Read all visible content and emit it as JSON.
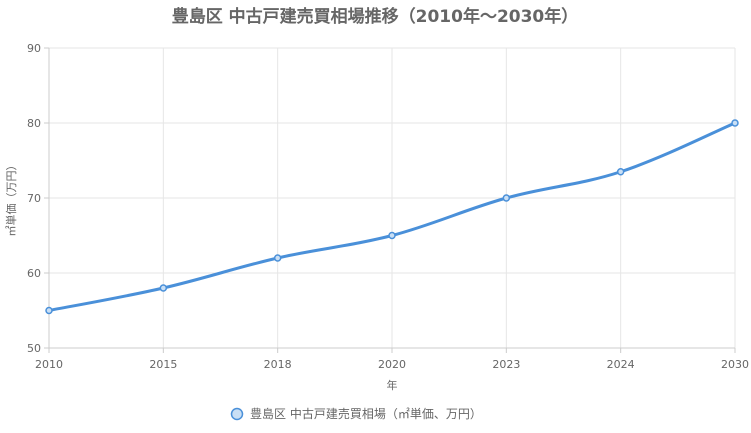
{
  "chart_data": {
    "type": "line",
    "title": "豊島区 中古戸建売買相場推移（2010年～2030年）",
    "xlabel": "年",
    "ylabel": "㎡単価（万円）",
    "categories": [
      "2010",
      "2015",
      "2018",
      "2020",
      "2023",
      "2024",
      "2030"
    ],
    "series": [
      {
        "name": "豊島区 中古戸建売買相場（㎡単価、万円）",
        "values": [
          55,
          58,
          62,
          65,
          70,
          73.5,
          80
        ],
        "color": "#4a90d9",
        "point_fill": "#c9dff5"
      }
    ],
    "ylim": [
      50,
      90
    ],
    "yticks": [
      "50",
      "60",
      "70",
      "80",
      "90"
    ],
    "grid": true,
    "legend_position": "bottom"
  }
}
